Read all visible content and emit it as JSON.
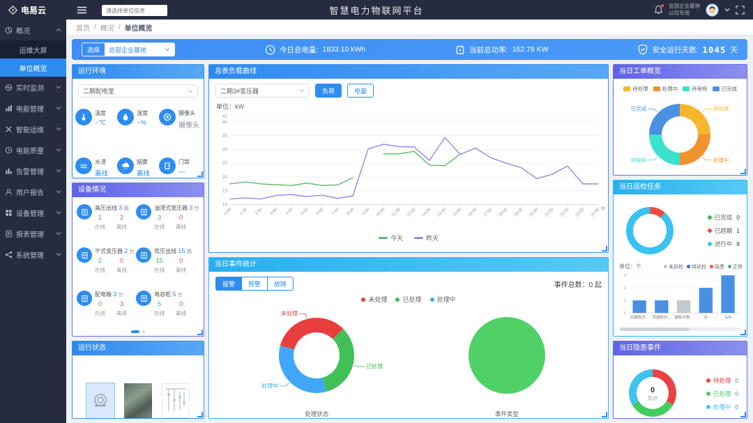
{
  "header": {
    "logo_text": "电易云",
    "search_placeholder": "请选择单位信息",
    "title": "智慧电力物联网平台",
    "org_line1": "总部企业基地",
    "org_line2": "公司专用"
  },
  "sidebar": {
    "items": [
      {
        "label": "概况",
        "expanded": true,
        "children": [
          {
            "label": "运维大屏",
            "active": false
          },
          {
            "label": "单位概览",
            "active": true
          }
        ]
      },
      {
        "label": "实时监测"
      },
      {
        "label": "电能管理"
      },
      {
        "label": "智能运维"
      },
      {
        "label": "电能质量"
      },
      {
        "label": "告警管理"
      },
      {
        "label": "用户报告"
      },
      {
        "label": "设备管理"
      },
      {
        "label": "报表管理"
      },
      {
        "label": "系统管理"
      }
    ]
  },
  "breadcrumb": {
    "items": [
      "首页",
      "概况",
      "单位概览"
    ]
  },
  "statsbar": {
    "select_label": "选择",
    "select_value": "总部企业基地",
    "energy_label": "今日总电量:",
    "energy_value": "1833.10 kWh",
    "power_label": "当前总功率:",
    "power_value": "162.78 KW",
    "safe_label": "安全运行天数:",
    "safe_value": "1045",
    "safe_unit": "天"
  },
  "env_panel": {
    "title": "运行环境",
    "select_value": "二期配电室",
    "items": [
      {
        "icon": "thermometer-icon",
        "label": "温度",
        "value": "~℃"
      },
      {
        "icon": "humidity-icon",
        "label": "湿度",
        "value": "~%"
      },
      {
        "icon": "camera-icon",
        "label": "摄像头",
        "value": "摄像头",
        "muted": true
      },
      {
        "icon": "water-sensor-icon",
        "label": "水浸",
        "value": "离线"
      },
      {
        "icon": "smoke-sensor-icon",
        "label": "烟雾",
        "value": "离线"
      },
      {
        "icon": "door-access-icon",
        "label": "门禁",
        "value": "—"
      }
    ]
  },
  "device_panel": {
    "title": "设备情况",
    "online_label": "在线",
    "offline_label": "离线",
    "items": [
      {
        "icon": "hv-outgoing-icon",
        "name": "高压出线",
        "count": "3",
        "unit": "路",
        "online": "1",
        "offline": "2"
      },
      {
        "icon": "oil-transformer-icon",
        "name": "油浸式变压器",
        "count": "3",
        "unit": "台",
        "online": "3",
        "offline": "0"
      },
      {
        "icon": "dry-transformer-icon",
        "name": "干式变压器",
        "count": "2",
        "unit": "台",
        "online": "2",
        "offline": "0"
      },
      {
        "icon": "lv-outgoing-icon",
        "name": "低压出线",
        "count": "15",
        "unit": "路",
        "online": "15",
        "offline": "0"
      },
      {
        "icon": "dist-box-icon",
        "name": "配电箱",
        "count": "3",
        "unit": "台",
        "online": "0",
        "offline": "3"
      },
      {
        "icon": "capacitor-cabinet-icon",
        "name": "电容柜",
        "count": "5",
        "unit": "台",
        "online": "5",
        "offline": "0"
      }
    ]
  },
  "status_panel": {
    "title": "运行状态",
    "images": [
      "camera-photo",
      "equipment-photo",
      "circuit-diagram"
    ]
  },
  "load_panel": {
    "title": "总表负载曲线",
    "select_value": "二期3#变压器",
    "btn_load": "负荷",
    "btn_energy": "电量",
    "unit_label": "单位：kW"
  },
  "event_panel": {
    "title": "当日事件统计",
    "tabs": [
      "报警",
      "预警",
      "故障"
    ],
    "active_tab": "报警",
    "total_label": "事件总数：0 起",
    "legend": [
      {
        "label": "未处理",
        "color": "#e83e3e"
      },
      {
        "label": "已处理",
        "color": "#41c057"
      },
      {
        "label": "处理中",
        "color": "#3fa7f5"
      }
    ],
    "left_caption": "处理状态",
    "right_caption": "事件类型"
  },
  "workorder_panel": {
    "title": "当日工单概览"
  },
  "inspection_panel": {
    "title": "当日巡检任务",
    "legend": [
      {
        "label": "已完成",
        "value": "0",
        "color": "#3cba54"
      },
      {
        "label": "已超期",
        "value": "1",
        "color": "#ef4b43"
      },
      {
        "label": "进行中",
        "value": "8",
        "color": "#38c3f0"
      }
    ],
    "unit_label": "单位：个",
    "bar_legend": [
      {
        "label": "未巡检",
        "color": "#bfbfbf"
      },
      {
        "label": "待巡检",
        "color": "#2d6ced"
      },
      {
        "label": "隐患",
        "color": "#ef4b43"
      },
      {
        "label": "正常",
        "color": "#3cba54"
      }
    ]
  },
  "danger_panel": {
    "title": "当日隐患事件",
    "center_value": "0",
    "center_label": "共计",
    "legend": [
      {
        "label": "待处理",
        "value": "0",
        "color": "#ea4141"
      },
      {
        "label": "已处理",
        "value": "0",
        "color": "#43cd5e"
      },
      {
        "label": "处理中",
        "value": "0",
        "color": "#3fc3ee"
      }
    ]
  },
  "chart_data": [
    {
      "id": "load-curve",
      "type": "line",
      "title": "总表负载曲线",
      "ylabel": "kW",
      "x_unit": "时",
      "ylim": [
        10,
        42
      ],
      "yticks": [
        10,
        15,
        20,
        25,
        30,
        35,
        40,
        42
      ],
      "grid": true,
      "legend_position": "bottom",
      "x": [
        "0:00",
        "1:00",
        "2:00",
        "3:00",
        "4:00",
        "5:00",
        "6:00",
        "7:00",
        "8:00",
        "9:00",
        "10:00",
        "11:00",
        "12:00",
        "13:00",
        "14:00",
        "15:00",
        "16:00",
        "17:00",
        "18:00",
        "19:00",
        "20:00",
        "21:00",
        "22:00",
        "23:00",
        "24:00"
      ],
      "series": [
        {
          "name": "今天",
          "color": "#5cb96a",
          "values": [
            17.5,
            18.2,
            17.5,
            17.2,
            16.9,
            17.8,
            16.9,
            17.1,
            19.7,
            null,
            28.4,
            28.4,
            29.3,
            24.3,
            24.1,
            28.3,
            null,
            null,
            null,
            null,
            null,
            null,
            null,
            null,
            null
          ]
        },
        {
          "name": "昨天",
          "color": "#8e87f0",
          "values": [
            12.0,
            12.4,
            12.0,
            13.3,
            13.6,
            12.9,
            13.4,
            12.2,
            13.1,
            30.2,
            31.9,
            31.0,
            30.9,
            26.0,
            34.3,
            28.2,
            30.5,
            27.0,
            25.0,
            23.3,
            19.4,
            21.0,
            24.0,
            17.5,
            17.5
          ]
        }
      ]
    },
    {
      "id": "workorder-donut",
      "type": "pie",
      "donut": true,
      "start_deg": 270,
      "slices": [
        {
          "label": "待处理",
          "value": 25,
          "color": "#f8b62c"
        },
        {
          "label": "处理中",
          "value": 25,
          "color": "#f0932f"
        },
        {
          "label": "待审核",
          "value": 25,
          "color": "#3be2cd"
        },
        {
          "label": "已完成",
          "value": 25,
          "color": "#4a90e2"
        }
      ]
    },
    {
      "id": "inspection-donut",
      "type": "pie",
      "donut": true,
      "start_deg": 270,
      "slices": [
        {
          "label": "已完成",
          "value": 0,
          "color": "#3cba54"
        },
        {
          "label": "已超期",
          "value": 1,
          "color": "#ef4b43"
        },
        {
          "label": "进行中",
          "value": 8,
          "color": "#38c3f0"
        }
      ]
    },
    {
      "id": "inspection-bar",
      "type": "bar",
      "ylabel": "个",
      "ylim": [
        0,
        3
      ],
      "yticks": [
        0,
        1,
        2,
        3
      ],
      "categories": [
        "日巡检计...",
        "月巡检计...",
        "巡检计划...",
        "11",
        "123"
      ],
      "values": [
        1,
        1,
        1,
        2,
        3
      ],
      "colors": [
        "#4a90e2",
        "#4a90e2",
        "#c4c8cf",
        "#4a90e2",
        "#4a90e2"
      ]
    },
    {
      "id": "event-status-donut",
      "type": "pie",
      "donut": true,
      "start_deg": 195,
      "slices": [
        {
          "label": "未处理",
          "value": 0,
          "color": "#e83e3e"
        },
        {
          "label": "已处理",
          "value": 0,
          "color": "#41c057"
        },
        {
          "label": "处理中",
          "value": 0,
          "color": "#3fa7f5"
        }
      ]
    },
    {
      "id": "event-type-pie",
      "type": "pie",
      "start_deg": 270,
      "slices": [
        {
          "label": "事件类型",
          "value": 100,
          "color": "#4fd166"
        }
      ]
    },
    {
      "id": "danger-donut",
      "type": "pie",
      "donut": true,
      "start_deg": 270,
      "center": {
        "value": "0",
        "label": "共计"
      },
      "slices": [
        {
          "label": "待处理",
          "value": 0,
          "color": "#ea4141"
        },
        {
          "label": "已处理",
          "value": 0,
          "color": "#43cd5e"
        },
        {
          "label": "处理中",
          "value": 0,
          "color": "#3fc3ee"
        }
      ]
    }
  ]
}
